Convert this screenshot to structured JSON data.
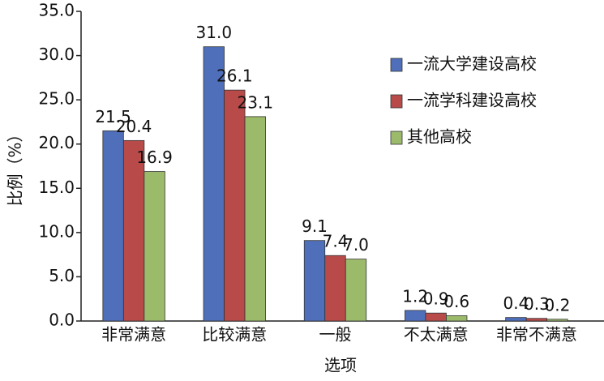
{
  "chart_data": {
    "type": "bar",
    "x_label": "选项",
    "y_label": "比例（%）",
    "categories": [
      "非常满意",
      "比较满意",
      "一般",
      "不太满意",
      "非常不满意"
    ],
    "series": [
      {
        "name": "一流大学建设高校",
        "color": "#4f6fba",
        "values": [
          21.5,
          31.0,
          9.1,
          1.2,
          0.4
        ],
        "value_labels": [
          "21.5",
          "31.0",
          "9.1",
          "1.2",
          "0.4"
        ]
      },
      {
        "name": "一流学科建设高校",
        "color": "#b94a4a",
        "values": [
          20.4,
          26.1,
          7.4,
          0.9,
          0.3
        ],
        "value_labels": [
          "20.4",
          "26.1",
          "7.4",
          "0.9",
          "0.3"
        ]
      },
      {
        "name": "其他高校",
        "color": "#9bbb6a",
        "values": [
          16.9,
          23.1,
          7.0,
          0.6,
          0.2
        ],
        "value_labels": [
          "16.9",
          "23.1",
          "7.0",
          "0.6",
          "0.2"
        ]
      }
    ],
    "ylim": [
      0,
      35
    ],
    "yticks": [
      {
        "value": 0,
        "label": "0.0"
      },
      {
        "value": 5,
        "label": "5.0"
      },
      {
        "value": 10,
        "label": "10.0"
      },
      {
        "value": 15,
        "label": "15.0"
      },
      {
        "value": 20,
        "label": "20.0"
      },
      {
        "value": 25,
        "label": "25.0"
      },
      {
        "value": 30,
        "label": "30.0"
      },
      {
        "value": 35,
        "label": "35.0"
      }
    ],
    "legend": "upper right",
    "grid": false
  }
}
